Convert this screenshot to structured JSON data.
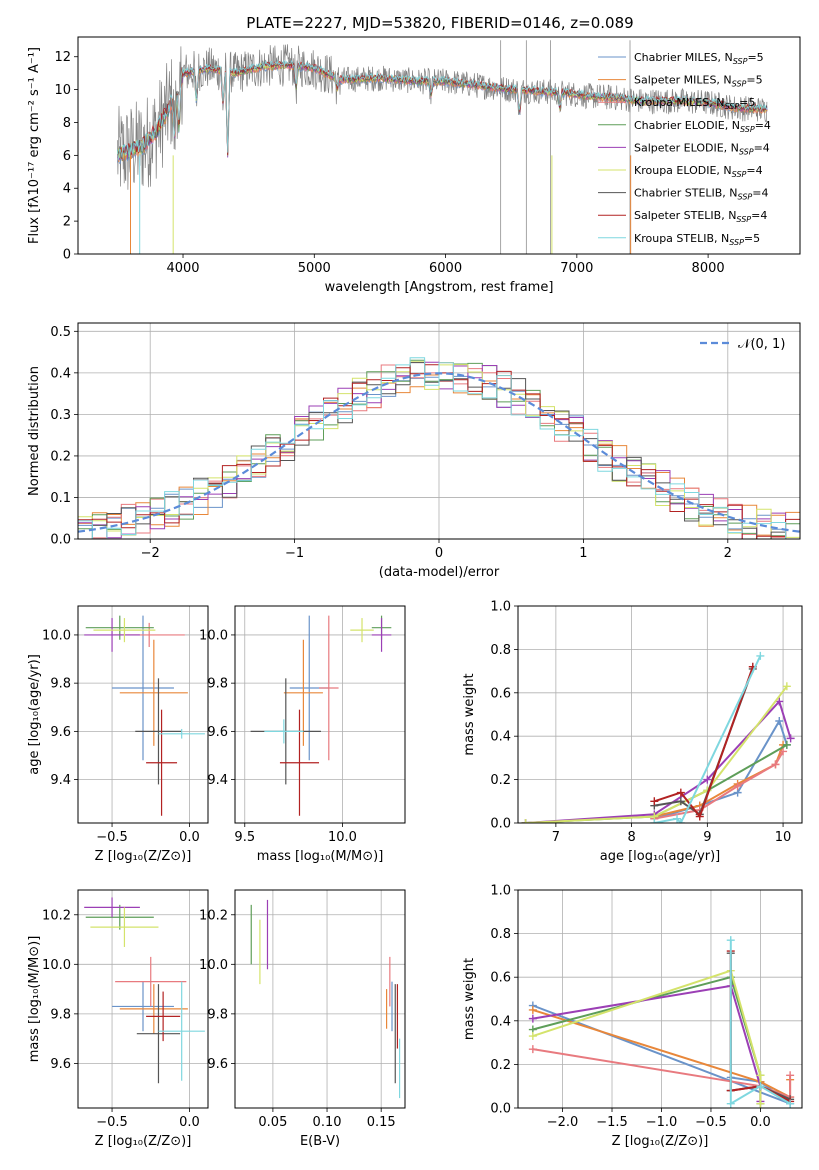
{
  "figure": {
    "title": "PLATE=2227, MJD=53820, FIBERID=0146, z=0.089"
  },
  "colors": {
    "Chabrier MILES": "#6a93c9",
    "Salpeter MILES": "#e8873a",
    "Kroupa MILES": "#e87a7f",
    "Chabrier ELODIE": "#5e9e59",
    "Salpeter ELODIE": "#9b3fb5",
    "Kroupa ELODIE": "#d4e36b",
    "Chabrier STELIB": "#555555",
    "Salpeter STELIB": "#b22222",
    "Kroupa STELIB": "#7fd7df",
    "data": "#808080",
    "gauss": "#5b8bd9",
    "grid": "#b0b0b0"
  },
  "chart_data": [
    {
      "type": "line",
      "id": "spectrum",
      "xlabel": "wavelength [Angstrom, rest frame]",
      "ylabel": "Flux [fλ10⁻¹⁷ erg cm⁻² s⁻¹ A⁻¹]",
      "xlim": [
        3200,
        8700
      ],
      "ylim": [
        0,
        13.2
      ],
      "xticks": [
        4000,
        5000,
        6000,
        7000,
        8000
      ],
      "yticks": [
        0,
        2,
        4,
        6,
        8,
        10,
        12
      ],
      "legend_position": "top-right",
      "legend": [
        "Chabrier MILES, N_SSP=5",
        "Salpeter MILES, N_SSP=5",
        "Kroupa MILES, N_SSP=5",
        "Chabrier ELODIE, N_SSP=4",
        "Salpeter ELODIE, N_SSP=4",
        "Kroupa ELODIE, N_SSP=4",
        "Chabrier STELIB, N_SSP=4",
        "Salpeter STELIB, N_SSP=4",
        "Kroupa STELIB, N_SSP=5"
      ],
      "continuum": [
        [
          3500,
          6.0
        ],
        [
          3600,
          6.3
        ],
        [
          3700,
          6.6
        ],
        [
          3800,
          7.5
        ],
        [
          3900,
          9.0
        ],
        [
          4000,
          11.0
        ],
        [
          4200,
          11.3
        ],
        [
          4400,
          11.0
        ],
        [
          4600,
          11.4
        ],
        [
          4800,
          11.5
        ],
        [
          5000,
          11.3
        ],
        [
          5200,
          10.6
        ],
        [
          5500,
          10.7
        ],
        [
          5800,
          10.5
        ],
        [
          6000,
          10.5
        ],
        [
          6300,
          10.2
        ],
        [
          6500,
          10.0
        ],
        [
          6700,
          9.9
        ],
        [
          6900,
          9.8
        ],
        [
          7100,
          9.6
        ],
        [
          7300,
          9.5
        ],
        [
          7500,
          9.3
        ],
        [
          7800,
          9.3
        ],
        [
          8000,
          9.2
        ],
        [
          8200,
          8.9
        ],
        [
          8400,
          8.8
        ]
      ],
      "absorption_dips": [
        [
          3935,
          7.0
        ],
        [
          3970,
          7.5
        ],
        [
          4102,
          9.2
        ],
        [
          4305,
          9.0
        ],
        [
          4340,
          6.0
        ],
        [
          4861,
          10.0
        ],
        [
          5175,
          10.0
        ],
        [
          5890,
          9.6
        ],
        [
          6563,
          8.5
        ],
        [
          6870,
          8.8
        ]
      ]
    },
    {
      "type": "bar",
      "id": "residuals",
      "xlabel": "(data-model)/error",
      "ylabel": "Normed distribution",
      "xlim": [
        -2.5,
        2.5
      ],
      "ylim": [
        0,
        0.52
      ],
      "xticks": [
        -2,
        -1,
        0,
        1,
        2
      ],
      "yticks": [
        0.0,
        0.1,
        0.2,
        0.3,
        0.4,
        0.5
      ],
      "legend": [
        "𝒩(0, 1)"
      ],
      "legend_position": "top-right",
      "bin_width": 0.1,
      "bin_start": -2.5,
      "reference_curve": "normal(0,1)"
    },
    {
      "type": "scatter",
      "id": "age_vs_Z",
      "xlabel": "Z [log₁₀(Z/Z⊙)]",
      "ylabel": "age  [log₁₀(age/yr)]",
      "xlim": [
        -0.72,
        0.12
      ],
      "ylim": [
        9.22,
        10.12
      ],
      "xticks": [
        -0.5,
        0.0
      ],
      "yticks": [
        9.4,
        9.6,
        9.8,
        10.0
      ],
      "points": [
        {
          "series": "Chabrier MILES",
          "x": -0.3,
          "y": 9.78,
          "xerr": 0.2,
          "yerr": 0.3
        },
        {
          "series": "Salpeter MILES",
          "x": -0.23,
          "y": 9.76,
          "xerr": 0.22,
          "yerr": 0.22
        },
        {
          "series": "Kroupa MILES",
          "x": -0.26,
          "y": 10.0,
          "xerr": 0.23,
          "yerr": 0.05
        },
        {
          "series": "Chabrier ELODIE",
          "x": -0.45,
          "y": 10.03,
          "xerr": 0.22,
          "yerr": 0.05
        },
        {
          "series": "Salpeter ELODIE",
          "x": -0.5,
          "y": 10.0,
          "xerr": 0.18,
          "yerr": 0.07
        },
        {
          "series": "Kroupa ELODIE",
          "x": -0.42,
          "y": 10.02,
          "xerr": 0.2,
          "yerr": 0.05
        },
        {
          "series": "Chabrier STELIB",
          "x": -0.2,
          "y": 9.6,
          "xerr": 0.15,
          "yerr": 0.22
        },
        {
          "series": "Salpeter STELIB",
          "x": -0.18,
          "y": 9.47,
          "xerr": 0.1,
          "yerr": 0.22
        },
        {
          "series": "Kroupa STELIB",
          "x": -0.05,
          "y": 9.59,
          "xerr": 0.15,
          "yerr": 0.02
        }
      ]
    },
    {
      "type": "scatter",
      "id": "age_vs_mass",
      "xlabel": "mass [log₁₀(M/M⊙)]",
      "ylabel": "",
      "xlim": [
        9.45,
        10.32
      ],
      "ylim": [
        9.22,
        10.12
      ],
      "xticks": [
        9.5,
        10.0
      ],
      "yticks": [
        9.4,
        9.6,
        9.8,
        10.0
      ],
      "points": [
        {
          "series": "Chabrier MILES",
          "x": 9.83,
          "y": 9.78,
          "xerr": 0.1,
          "yerr": 0.3
        },
        {
          "series": "Salpeter MILES",
          "x": 9.8,
          "y": 9.76,
          "xerr": 0.1,
          "yerr": 0.22
        },
        {
          "series": "Kroupa MILES",
          "x": 9.93,
          "y": 9.78,
          "xerr": 0.05,
          "yerr": 0.3
        },
        {
          "series": "Chabrier ELODIE",
          "x": 10.2,
          "y": 10.03,
          "xerr": 0.05,
          "yerr": 0.05
        },
        {
          "series": "Salpeter ELODIE",
          "x": 10.2,
          "y": 10.0,
          "xerr": 0.05,
          "yerr": 0.07
        },
        {
          "series": "Kroupa ELODIE",
          "x": 10.1,
          "y": 10.02,
          "xerr": 0.06,
          "yerr": 0.05
        },
        {
          "series": "Chabrier STELIB",
          "x": 9.71,
          "y": 9.6,
          "xerr": 0.18,
          "yerr": 0.22
        },
        {
          "series": "Salpeter STELIB",
          "x": 9.78,
          "y": 9.47,
          "xerr": 0.1,
          "yerr": 0.22
        },
        {
          "series": "Kroupa STELIB",
          "x": 9.7,
          "y": 9.6,
          "xerr": 0.1,
          "yerr": 0.05
        }
      ]
    },
    {
      "type": "line",
      "id": "weight_vs_age",
      "xlabel": "age  [log₁₀(age/yr)]",
      "ylabel": "mass weight",
      "xlim": [
        6.5,
        10.25
      ],
      "ylim": [
        0,
        1.0
      ],
      "xticks": [
        7,
        8,
        9,
        10
      ],
      "yticks": [
        0.0,
        0.2,
        0.4,
        0.6,
        0.8,
        1.0
      ],
      "series": [
        {
          "series": "Chabrier MILES",
          "x": [
            8.3,
            8.9,
            9.4,
            9.95,
            10.05
          ],
          "y": [
            0.02,
            0.08,
            0.14,
            0.47,
            0.36
          ]
        },
        {
          "series": "Salpeter MILES",
          "x": [
            8.3,
            8.9,
            9.4,
            9.9,
            10.0
          ],
          "y": [
            0.03,
            0.08,
            0.18,
            0.27,
            0.36
          ]
        },
        {
          "series": "Kroupa MILES",
          "x": [
            8.3,
            8.9,
            9.4,
            9.9,
            10.0
          ],
          "y": [
            0.02,
            0.06,
            0.17,
            0.27,
            0.33
          ]
        },
        {
          "series": "Chabrier ELODIE",
          "x": [
            6.6,
            8.3,
            9.0,
            10.05
          ],
          "y": [
            0.0,
            0.03,
            0.15,
            0.36
          ]
        },
        {
          "series": "Salpeter ELODIE",
          "x": [
            6.6,
            8.3,
            9.0,
            9.95,
            10.1
          ],
          "y": [
            0.0,
            0.04,
            0.2,
            0.56,
            0.39
          ]
        },
        {
          "series": "Kroupa ELODIE",
          "x": [
            6.6,
            8.3,
            9.0,
            10.05
          ],
          "y": [
            0.0,
            0.03,
            0.15,
            0.63
          ]
        },
        {
          "series": "Chabrier STELIB",
          "x": [
            8.3,
            8.65,
            8.9,
            9.6
          ],
          "y": [
            0.08,
            0.1,
            0.04,
            0.71
          ]
        },
        {
          "series": "Salpeter STELIB",
          "x": [
            8.3,
            8.65,
            8.9,
            9.6
          ],
          "y": [
            0.1,
            0.14,
            0.03,
            0.72
          ]
        },
        {
          "series": "Kroupa STELIB",
          "x": [
            8.3,
            8.6,
            8.65,
            9.7
          ],
          "y": [
            0.0,
            0.02,
            0.0,
            0.77
          ]
        }
      ]
    },
    {
      "type": "scatter",
      "id": "mass_vs_Z",
      "xlabel": "Z [log₁₀(Z/Z⊙)]",
      "ylabel": "mass [log₁₀(M/M⊙)]",
      "xlim": [
        -0.72,
        0.12
      ],
      "ylim": [
        9.42,
        10.3
      ],
      "xticks": [
        -0.5,
        0.0
      ],
      "yticks": [
        9.6,
        9.8,
        10.0,
        10.2
      ],
      "points": [
        {
          "series": "Chabrier MILES",
          "x": -0.3,
          "y": 9.83,
          "xerr": 0.2,
          "yerr": 0.1
        },
        {
          "series": "Salpeter MILES",
          "x": -0.23,
          "y": 9.82,
          "xerr": 0.22,
          "yerr": 0.1
        },
        {
          "series": "Kroupa MILES",
          "x": -0.25,
          "y": 9.93,
          "xerr": 0.23,
          "yerr": 0.1
        },
        {
          "series": "Chabrier ELODIE",
          "x": -0.45,
          "y": 10.19,
          "xerr": 0.22,
          "yerr": 0.05
        },
        {
          "series": "Salpeter ELODIE",
          "x": -0.5,
          "y": 10.23,
          "xerr": 0.18,
          "yerr": 0.04
        },
        {
          "series": "Kroupa ELODIE",
          "x": -0.42,
          "y": 10.15,
          "xerr": 0.22,
          "yerr": 0.08
        },
        {
          "series": "Chabrier STELIB",
          "x": -0.2,
          "y": 9.72,
          "xerr": 0.14,
          "yerr": 0.2
        },
        {
          "series": "Salpeter STELIB",
          "x": -0.17,
          "y": 9.79,
          "xerr": 0.11,
          "yerr": 0.1
        },
        {
          "series": "Kroupa STELIB",
          "x": -0.05,
          "y": 9.73,
          "xerr": 0.15,
          "yerr": 0.2
        }
      ]
    },
    {
      "type": "scatter",
      "id": "mass_vs_ebv",
      "xlabel": "E(B-V)",
      "ylabel": "",
      "xlim": [
        0.015,
        0.172
      ],
      "ylim": [
        9.42,
        10.3
      ],
      "xticks": [
        0.05,
        0.1,
        0.15
      ],
      "yticks": [
        9.6,
        9.8,
        10.0,
        10.2
      ],
      "points": [
        {
          "series": "Chabrier MILES",
          "x": 0.16,
          "y": 9.83,
          "yerr": 0.1
        },
        {
          "series": "Salpeter MILES",
          "x": 0.155,
          "y": 9.82,
          "yerr": 0.08
        },
        {
          "series": "Kroupa MILES",
          "x": 0.158,
          "y": 9.93,
          "yerr": 0.1
        },
        {
          "series": "Chabrier ELODIE",
          "x": 0.03,
          "y": 10.12,
          "yerr": 0.12
        },
        {
          "series": "Salpeter ELODIE",
          "x": 0.045,
          "y": 10.12,
          "yerr": 0.14
        },
        {
          "series": "Kroupa ELODIE",
          "x": 0.038,
          "y": 10.05,
          "yerr": 0.13
        },
        {
          "series": "Chabrier STELIB",
          "x": 0.163,
          "y": 9.72,
          "yerr": 0.2
        },
        {
          "series": "Salpeter STELIB",
          "x": 0.165,
          "y": 9.79,
          "yerr": 0.13
        },
        {
          "series": "Kroupa STELIB",
          "x": 0.167,
          "y": 9.58,
          "yerr": 0.12
        }
      ]
    },
    {
      "type": "line",
      "id": "weight_vs_Z",
      "xlabel": "Z [log₁₀(Z/Z⊙)]",
      "ylabel": "mass weight",
      "xlim": [
        -2.45,
        0.42
      ],
      "ylim": [
        0,
        1.0
      ],
      "xticks": [
        -2.0,
        -1.5,
        -1.0,
        -0.5,
        0.0
      ],
      "yticks": [
        0.0,
        0.2,
        0.4,
        0.6,
        0.8,
        1.0
      ],
      "series": [
        {
          "series": "Chabrier MILES",
          "x": [
            -0.3,
            0.0,
            0.3,
            -2.3
          ],
          "y": [
            0.14,
            0.12,
            0.02,
            0.47
          ]
        },
        {
          "series": "Salpeter MILES",
          "x": [
            -2.3,
            0.0,
            0.3,
            0.3
          ],
          "y": [
            0.45,
            0.12,
            0.05,
            0.13
          ]
        },
        {
          "series": "Kroupa MILES",
          "x": [
            -2.3,
            0.0,
            0.3,
            0.3
          ],
          "y": [
            0.27,
            0.1,
            0.05,
            0.15
          ]
        },
        {
          "series": "Chabrier ELODIE",
          "x": [
            -2.3,
            -0.3,
            0.0,
            0.0
          ],
          "y": [
            0.36,
            0.6,
            0.15,
            0.02
          ]
        },
        {
          "series": "Salpeter ELODIE",
          "x": [
            -2.3,
            -0.3,
            0.0,
            0.0
          ],
          "y": [
            0.41,
            0.56,
            0.1,
            0.03
          ]
        },
        {
          "series": "Kroupa ELODIE",
          "x": [
            -2.3,
            -0.3,
            0.0,
            0.0
          ],
          "y": [
            0.33,
            0.63,
            0.15,
            0.02
          ]
        },
        {
          "series": "Chabrier STELIB",
          "x": [
            -0.3,
            -0.3,
            0.0,
            0.3
          ],
          "y": [
            0.71,
            0.08,
            0.1,
            0.04
          ]
        },
        {
          "series": "Salpeter STELIB",
          "x": [
            -0.3,
            -0.3,
            0.0,
            0.3
          ],
          "y": [
            0.72,
            0.08,
            0.1,
            0.03
          ]
        },
        {
          "series": "Kroupa STELIB",
          "x": [
            -0.3,
            -0.3,
            0.0,
            0.3
          ],
          "y": [
            0.77,
            0.02,
            0.1,
            0.02
          ]
        }
      ]
    }
  ]
}
